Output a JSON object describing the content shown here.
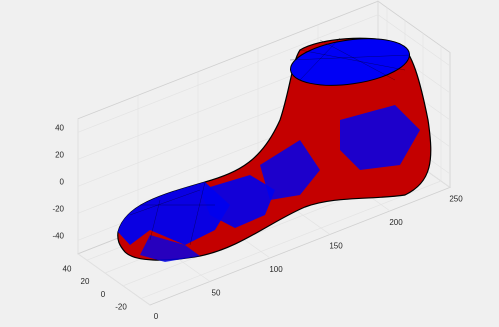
{
  "chart_data": {
    "type": "mesh3d",
    "xlim": [
      0,
      250
    ],
    "ylim": [
      -30,
      50
    ],
    "zlim": [
      -50,
      50
    ],
    "xticks": [
      0,
      50,
      100,
      150,
      200,
      250
    ],
    "yticks": [
      -20,
      0,
      20,
      40
    ],
    "zticks": [
      -40,
      -20,
      0,
      20,
      40
    ],
    "grid": true,
    "colors": {
      "face": "#c40000",
      "edge": "#0000ff"
    }
  }
}
